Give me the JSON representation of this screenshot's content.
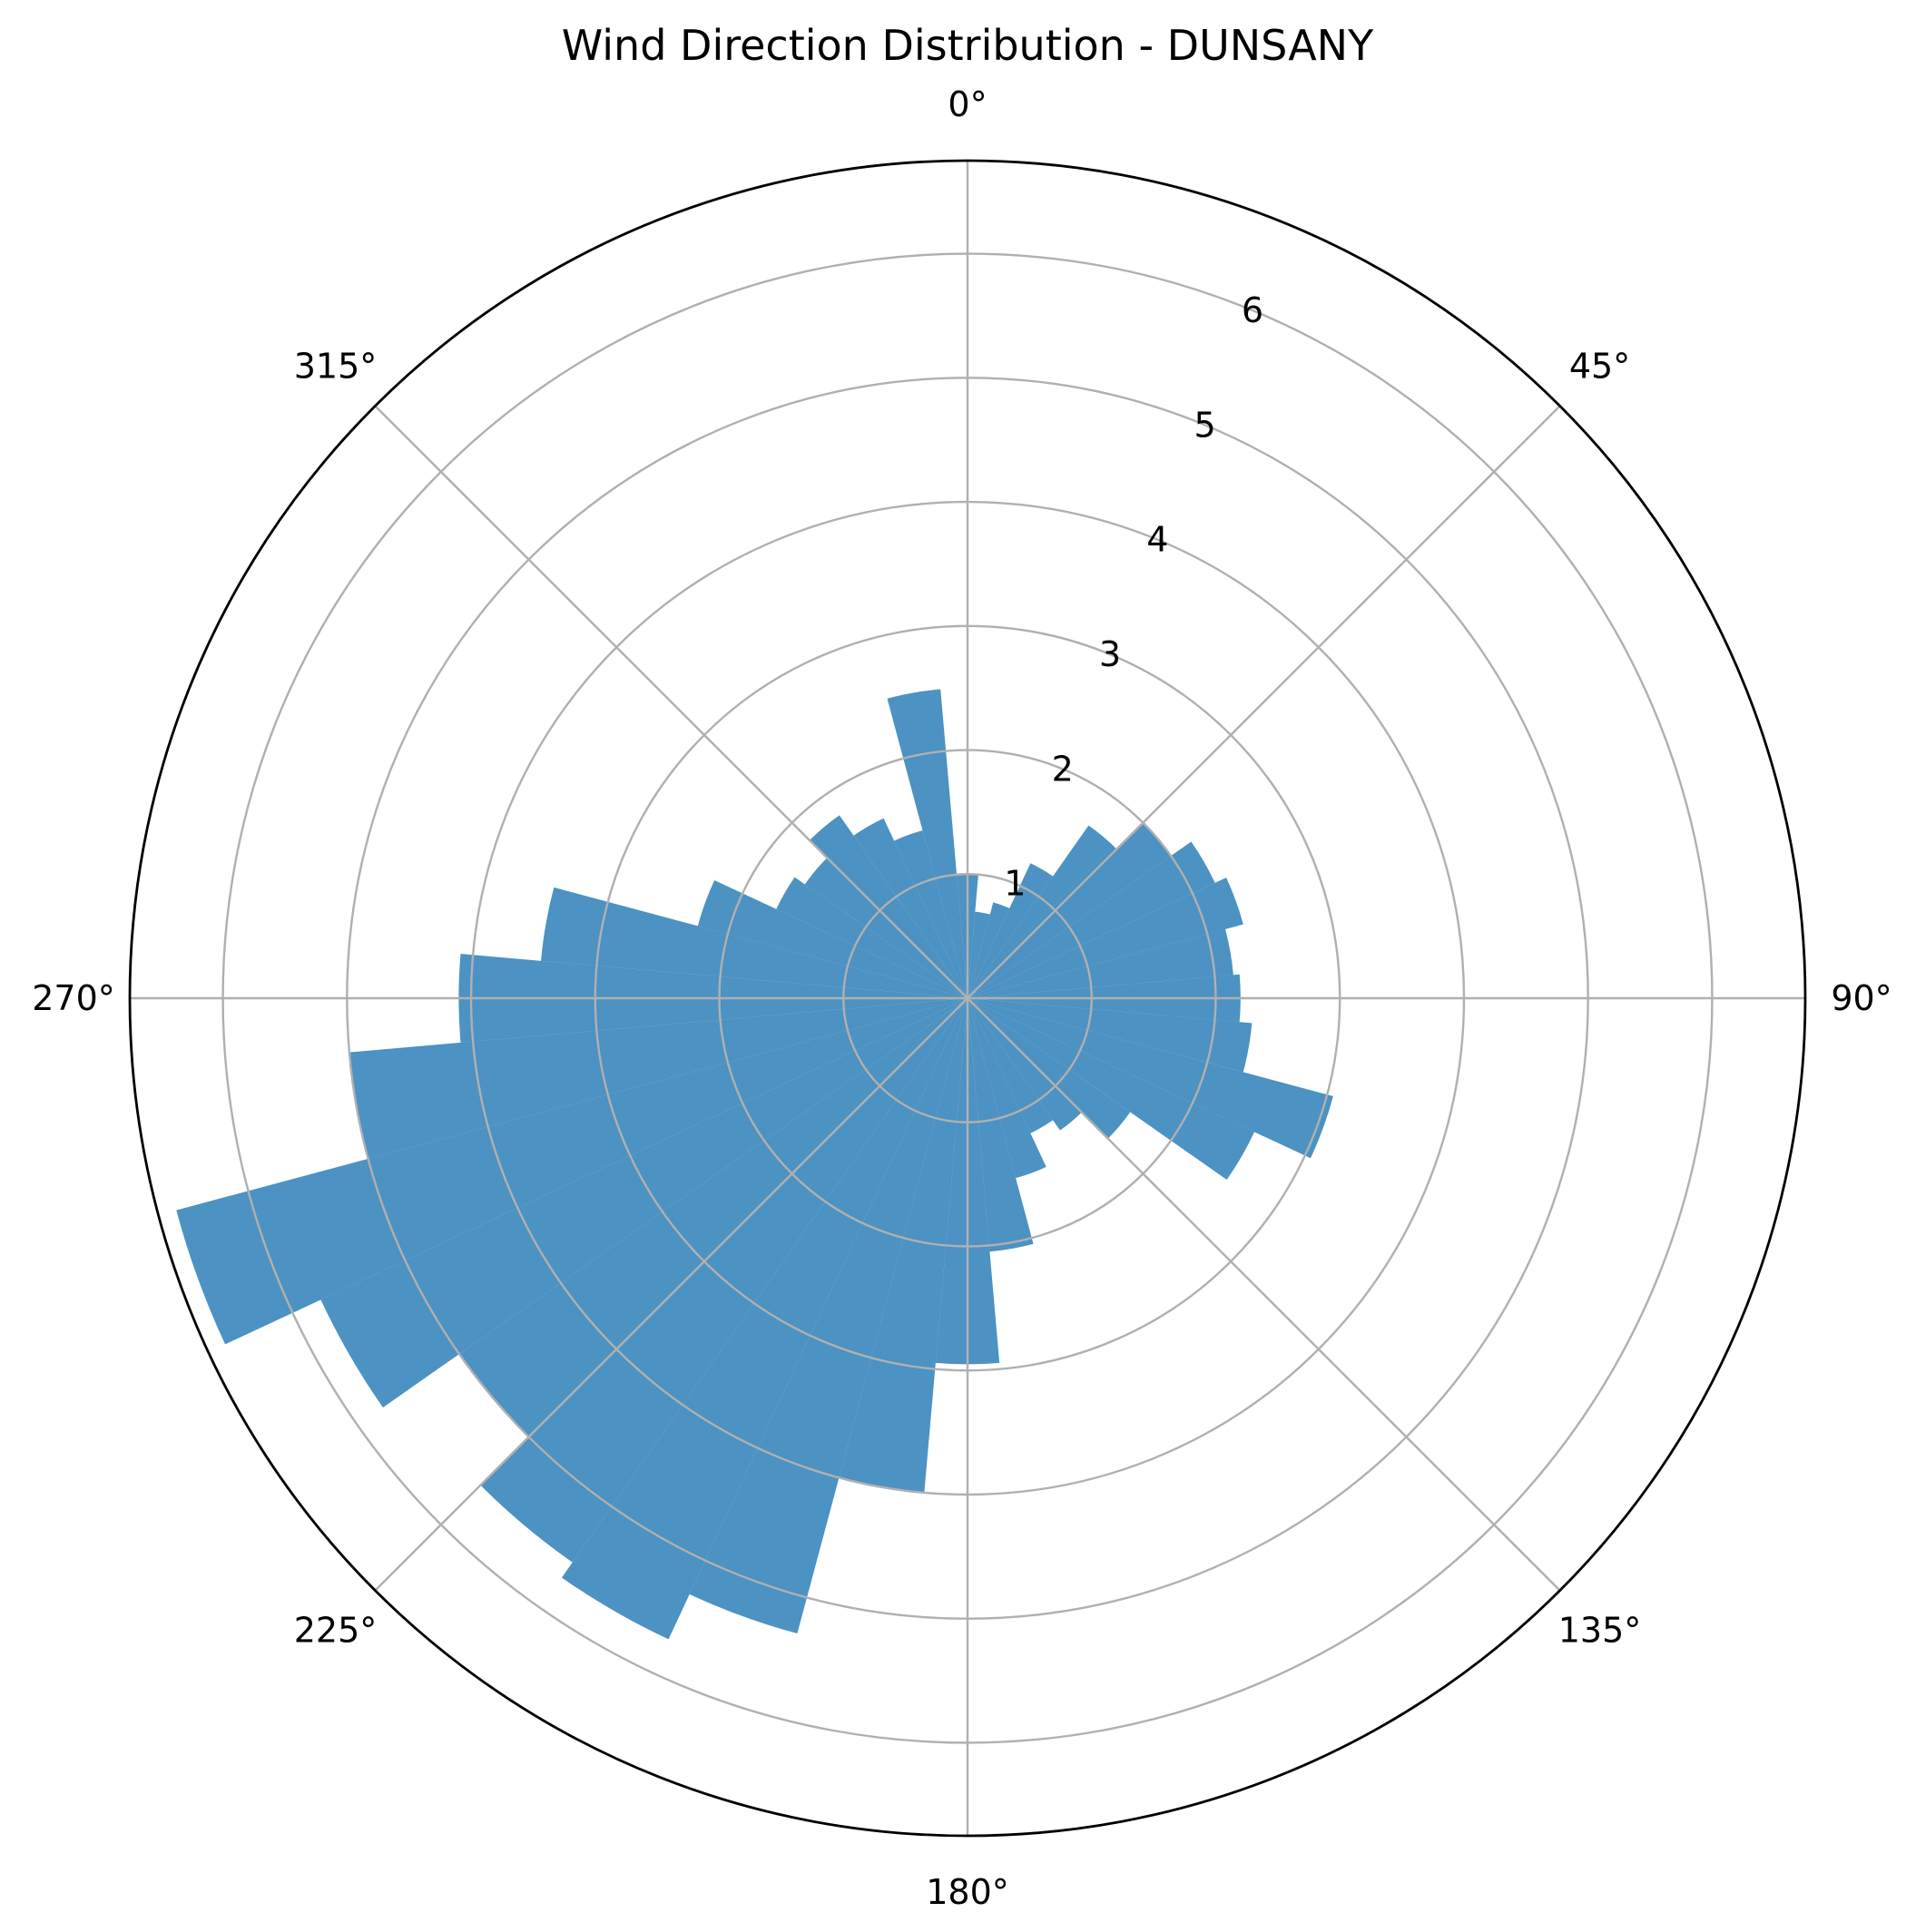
{
  "chart_data": {
    "type": "bar",
    "subtype": "polar",
    "title": "Wind Direction Distribution - DUNSANY",
    "theta_direction": "clockwise",
    "theta_zero": "north",
    "bin_width_deg": 10,
    "angle_ticks": [
      "0°",
      "45°",
      "90°",
      "135°",
      "180°",
      "225°",
      "270°",
      "315°"
    ],
    "radial_ticks": [
      "1",
      "2",
      "3",
      "4",
      "5",
      "6"
    ],
    "rlim": [
      0,
      6.75
    ],
    "grid": true,
    "color": "#1f77b4",
    "bar_alpha": 0.8,
    "directions": [
      0,
      10,
      20,
      30,
      40,
      50,
      60,
      70,
      80,
      90,
      100,
      110,
      120,
      130,
      140,
      150,
      160,
      170,
      180,
      190,
      200,
      210,
      220,
      230,
      240,
      250,
      260,
      270,
      280,
      290,
      300,
      310,
      320,
      330,
      340,
      350
    ],
    "values": [
      1.0,
      0.7,
      0.8,
      1.2,
      1.7,
      2.0,
      2.2,
      2.3,
      2.15,
      2.2,
      2.3,
      3.05,
      2.55,
      1.6,
      1.3,
      1.2,
      1.5,
      2.05,
      2.95,
      4.0,
      5.3,
      5.7,
      5.55,
      5.0,
      5.75,
      6.6,
      5.0,
      4.1,
      3.45,
      2.25,
      1.7,
      1.6,
      1.8,
      1.6,
      1.4,
      2.5
    ]
  }
}
